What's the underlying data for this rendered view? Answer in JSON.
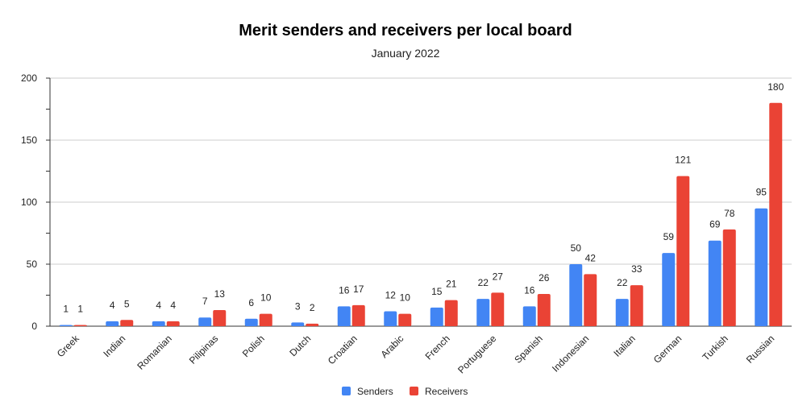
{
  "chart_data": {
    "type": "bar",
    "title": "Merit senders and receivers per local board",
    "subtitle": "January 2022",
    "categories": [
      "Greek",
      "Indian",
      "Romanian",
      "Pilipinas",
      "Polish",
      "Dutch",
      "Croatian",
      "Arabic",
      "French",
      "Portuguese",
      "Spanish",
      "Indonesian",
      "Italian",
      "German",
      "Turkish",
      "Russian"
    ],
    "series": [
      {
        "name": "Senders",
        "color": "#4285f4",
        "values": [
          1,
          4,
          4,
          7,
          6,
          3,
          16,
          12,
          15,
          22,
          16,
          50,
          22,
          59,
          69,
          95
        ]
      },
      {
        "name": "Receivers",
        "color": "#ea4335",
        "values": [
          1,
          5,
          4,
          13,
          10,
          2,
          17,
          10,
          21,
          27,
          26,
          42,
          33,
          121,
          78,
          180
        ]
      }
    ],
    "ylim": [
      0,
      200
    ],
    "yticks": [
      0,
      50,
      100,
      150,
      200
    ],
    "xlabel": "",
    "ylabel": "",
    "grid": true,
    "legend_position": "bottom",
    "data_labels": true
  }
}
